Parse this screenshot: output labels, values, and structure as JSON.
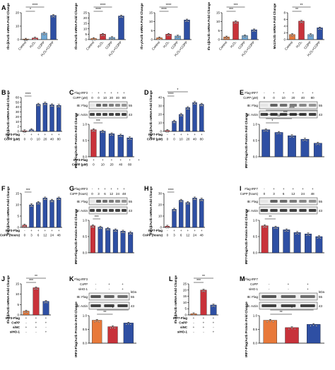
{
  "chart_data": [
    {
      "panel": "A",
      "type": "bar",
      "ylabel": "Ifn-β/Actb mRNA Fold Change",
      "categories": [
        "Control",
        "H₂O₂",
        "COPP",
        "H₂O₂+COPP"
      ],
      "values": [
        1,
        3,
        12,
        45
      ],
      "ylim": [
        0,
        50
      ],
      "yticks": [
        "0",
        "10",
        "20"
      ],
      "colors": [
        "#e8793a",
        "#c8323a",
        "#6fa7d4",
        "#2e4fa3"
      ],
      "sig": [
        "*",
        "****"
      ]
    },
    {
      "panel": "A2",
      "type": "bar",
      "ylabel": "Ifn-α/Actb mRNA Fold Change",
      "categories": [
        "Control",
        "H₂O₂",
        "COPP",
        "H₂O₂+COPP"
      ],
      "values": [
        1,
        5,
        2,
        22
      ],
      "ylim": [
        0,
        25
      ],
      "yticks": [
        "0",
        "5",
        "10",
        "15",
        "20",
        "25"
      ],
      "colors": [
        "#e8793a",
        "#c8323a",
        "#6fa7d4",
        "#2e4fa3"
      ],
      "sig": [
        "****",
        "****"
      ]
    },
    {
      "panel": "A3",
      "type": "bar",
      "ylabel": "Ifn-γ/Actb mRNA Fold Change",
      "categories": [
        "Control",
        "H₂O₂",
        "COPP",
        "H₂O₂+COPP"
      ],
      "values": [
        1,
        3,
        2,
        11
      ],
      "ylim": [
        0,
        15
      ],
      "yticks": [
        "0",
        "5",
        "10",
        "15"
      ],
      "colors": [
        "#e8793a",
        "#c8323a",
        "#6fa7d4",
        "#2e4fa3"
      ],
      "sig": [
        "****",
        "****"
      ]
    },
    {
      "panel": "A4",
      "type": "bar",
      "ylabel": "Ifn-1β/Actb mRNA Fold Change",
      "categories": [
        "Control",
        "H₂O₂",
        "COPP",
        "H₂O₂+COPP"
      ],
      "values": [
        1.5,
        10,
        2.2,
        5.5
      ],
      "ylim": [
        0,
        15
      ],
      "yticks": [
        "0",
        "5",
        "10",
        "15"
      ],
      "colors": [
        "#e8793a",
        "#c8323a",
        "#6fa7d4",
        "#2e4fa3"
      ],
      "sig": [
        "***",
        "***"
      ]
    },
    {
      "panel": "A5",
      "type": "bar",
      "ylabel": "Mx1/Actb mRNA Fold Change",
      "categories": [
        "Control",
        "H₂O₂",
        "COPP",
        "H₂O₂+COPP"
      ],
      "values": [
        1.5,
        5.5,
        1.5,
        3.5
      ],
      "ylim": [
        0,
        8
      ],
      "yticks": [
        "0",
        "2",
        "4",
        "6",
        "8"
      ],
      "colors": [
        "#e8793a",
        "#c8323a",
        "#6fa7d4",
        "#2e4fa3"
      ],
      "sig": [
        "**",
        "**"
      ]
    },
    {
      "panel": "B",
      "type": "bar",
      "ylabel": "Ifn-1β/Actb mRNA Fold Change",
      "rows": [
        {
          "label": "IRF3-Flag",
          "cells": [
            "-",
            "+",
            "+",
            "+",
            "+",
            "+"
          ]
        },
        {
          "label": "CoPP (μM)",
          "cells": [
            "0",
            "0",
            "10",
            "20",
            "40",
            "80"
          ]
        }
      ],
      "values": [
        1,
        3,
        48,
        50,
        47,
        46
      ],
      "ylim": [
        0,
        60
      ],
      "yticks": [
        "0",
        "2",
        "10",
        "20",
        "30",
        "40",
        "50",
        "60"
      ],
      "colors": [
        "#c8323a",
        "#2e4fa3",
        "#2e4fa3",
        "#2e4fa3",
        "#2e4fa3",
        "#2e4fa3"
      ],
      "sig": [
        "****"
      ]
    },
    {
      "panel": "C",
      "type": "bar",
      "ylabel": "IRF3-Flag/Actb Protein Fold Change",
      "blot_header": [
        {
          "label": "Flag-IRF3",
          "cells": [
            "-",
            "+",
            "+",
            "+",
            "+",
            "+"
          ]
        },
        {
          "label": "CoPP (μM)",
          "cells": [
            "0",
            "0",
            "10",
            "20",
            "40",
            "80"
          ]
        }
      ],
      "blots": [
        {
          "label": "IB: Flag",
          "kda": "55"
        },
        {
          "label": "IB: Actin",
          "kda": "43"
        }
      ],
      "rows": [
        {
          "label": "IRF3-Flag",
          "cells": [
            "+",
            "+",
            "+",
            "+",
            "+",
            "+"
          ]
        },
        {
          "label": "CoPP (μM)",
          "cells": [
            "0",
            "10",
            "20",
            "40",
            "80",
            ""
          ]
        }
      ],
      "values": [
        1.0,
        0.95,
        0.85,
        0.8,
        0.7
      ],
      "ylim": [
        0,
        1.2
      ],
      "yticks": [
        "0.0",
        "0.5",
        "1.0"
      ],
      "colors": [
        "#c8323a",
        "#2e4fa3",
        "#2e4fa3",
        "#2e4fa3",
        "#2e4fa3"
      ],
      "sig": [
        "***"
      ]
    },
    {
      "panel": "D",
      "type": "bar",
      "ylabel": "Ifn-1β/Actb mRNA Fold Change",
      "rows": [
        {
          "label": "IRF7-Flag",
          "cells": [
            "-",
            "+",
            "+",
            "+",
            "+",
            "+"
          ]
        },
        {
          "label": "CoPP (μM)",
          "cells": [
            "0",
            "0",
            "10",
            "20",
            "40",
            "80"
          ]
        }
      ],
      "values": [
        1,
        12,
        20,
        28,
        34,
        32
      ],
      "ylim": [
        0,
        40
      ],
      "yticks": [
        "0",
        "10",
        "20",
        "30",
        "40"
      ],
      "colors": [
        "#c8323a",
        "#2e4fa3",
        "#2e4fa3",
        "#2e4fa3",
        "#2e4fa3",
        "#2e4fa3"
      ],
      "sig": [
        "****",
        "*"
      ]
    },
    {
      "panel": "E",
      "type": "bar",
      "ylabel": "IRF7-Flag/Actb Protein Fold Change",
      "blot_header": [
        {
          "label": "Flag-IRF7",
          "cells": [
            "-",
            "+",
            "+",
            "+",
            "+",
            "+"
          ]
        },
        {
          "label": "CoPP (μM)",
          "cells": [
            "0",
            "0",
            "10",
            "20",
            "40",
            "80"
          ]
        }
      ],
      "blots": [
        {
          "label": "IB: Flag",
          "kda": "55"
        },
        {
          "label": "IB: Actin",
          "kda": "43"
        }
      ],
      "values": [
        1.0,
        0.9,
        0.78,
        0.65,
        0.5
      ],
      "ylim": [
        0,
        1.2
      ],
      "yticks": [
        "0.0",
        "0.5",
        "1.0"
      ],
      "colors": [
        "#2e4fa3",
        "#2e4fa3",
        "#2e4fa3",
        "#2e4fa3",
        "#2e4fa3"
      ],
      "sig": [
        "*",
        "**",
        "***",
        "****"
      ]
    },
    {
      "panel": "F",
      "type": "bar",
      "ylabel": "Ifn-1β/Actb mRNA Fold Change",
      "rows": [
        {
          "label": "IRF3-Flag",
          "cells": [
            "-",
            "+",
            "+",
            "+",
            "+",
            "+"
          ]
        },
        {
          "label": "CoPP (hours)",
          "cells": [
            "0",
            "3",
            "6",
            "12",
            "24",
            "48"
          ]
        }
      ],
      "values": [
        1,
        10,
        11,
        13,
        12,
        13
      ],
      "ylim": [
        0,
        15
      ],
      "yticks": [
        "0",
        "5",
        "10",
        "15"
      ],
      "colors": [
        "#c8323a",
        "#2e4fa3",
        "#2e4fa3",
        "#2e4fa3",
        "#2e4fa3",
        "#2e4fa3"
      ],
      "sig": [
        "***"
      ]
    },
    {
      "panel": "G",
      "type": "bar",
      "ylabel": "IRF3-Flag/Actb Protein Fold Change",
      "blot_header": [
        {
          "label": "Flag-IRF3",
          "cells": [
            "-",
            "+",
            "+",
            "+",
            "+",
            "+"
          ]
        },
        {
          "label": "CoPP (hours)",
          "cells": [
            "0",
            "3",
            "6",
            "12",
            "24",
            "48"
          ]
        }
      ],
      "blots": [
        {
          "label": "IB: Flag",
          "kda": "55"
        },
        {
          "label": "IB: Actin",
          "kda": "43"
        }
      ],
      "values": [
        1.0,
        0.95,
        0.9,
        0.85,
        0.8,
        0.75
      ],
      "ylim": [
        0,
        1.2
      ],
      "yticks": [
        "0.0",
        "0.5",
        "1.0"
      ],
      "colors": [
        "#c8323a",
        "#2e4fa3",
        "#2e4fa3",
        "#2e4fa3",
        "#2e4fa3",
        "#2e4fa3"
      ],
      "sig": [
        "***"
      ]
    },
    {
      "panel": "H",
      "type": "bar",
      "ylabel": "Ifn-1β/Actb mRNA Fold Change",
      "rows": [
        {
          "label": "IRF7-Flag",
          "cells": [
            "-",
            "+",
            "+",
            "+",
            "+",
            "+"
          ]
        },
        {
          "label": "CoPP (hours)",
          "cells": [
            "0",
            "3",
            "6",
            "12",
            "24",
            "48"
          ]
        }
      ],
      "values": [
        1,
        16,
        24,
        22,
        26,
        25
      ],
      "ylim": [
        0,
        30
      ],
      "yticks": [
        "0",
        "10",
        "20",
        "30"
      ],
      "colors": [
        "#c8323a",
        "#2e4fa3",
        "#2e4fa3",
        "#2e4fa3",
        "#2e4fa3",
        "#2e4fa3"
      ],
      "sig": [
        "****"
      ]
    },
    {
      "panel": "I",
      "type": "bar",
      "ylabel": "IRF7-Flag/Actb Protein Fold Change",
      "blot_header": [
        {
          "label": "Flag-IRF7",
          "cells": [
            "-",
            "+",
            "+",
            "+",
            "+",
            "+"
          ]
        },
        {
          "label": "CoPP (hours)",
          "cells": [
            "0",
            "3",
            "6",
            "12",
            "24",
            "48"
          ]
        }
      ],
      "blots": [
        {
          "label": "IB: Flag",
          "kda": "55"
        },
        {
          "label": "IB: Actin",
          "kda": "43"
        }
      ],
      "values": [
        1.0,
        0.95,
        0.85,
        0.75,
        0.7,
        0.6
      ],
      "ylim": [
        0,
        1.2
      ],
      "yticks": [
        "0.0",
        "0.5",
        "1.0"
      ],
      "colors": [
        "#c8323a",
        "#2e4fa3",
        "#2e4fa3",
        "#2e4fa3",
        "#2e4fa3",
        "#2e4fa3"
      ],
      "sig": [
        "**"
      ]
    },
    {
      "panel": "J",
      "type": "bar",
      "ylabel": "Ifn-1β/Actb mRNA Fold Change",
      "rows": [
        {
          "label": "IRF3-Flag",
          "cells": [
            "+",
            "+",
            "+"
          ]
        },
        {
          "label": "CoPP",
          "cells": [
            "-",
            "+",
            "+"
          ]
        },
        {
          "label": "siNC",
          "cells": [
            "+",
            "+",
            "-"
          ]
        },
        {
          "label": "siHO-1",
          "cells": [
            "-",
            "-",
            "+"
          ]
        }
      ],
      "values": [
        2,
        14,
        7
      ],
      "ylim": [
        0,
        16
      ],
      "yticks": [
        "0",
        "5",
        "10",
        "15"
      ],
      "colors": [
        "#e8793a",
        "#c8323a",
        "#2e4fa3"
      ],
      "sig": [
        "***",
        "**"
      ]
    },
    {
      "panel": "K",
      "type": "bar",
      "ylabel": "IRF3-Flag/Actb Protein Fold Change",
      "blot_header": [
        {
          "label": "Flag-IRF3",
          "cells": [
            "",
            "",
            ""
          ]
        },
        {
          "label": "CoPP",
          "cells": [
            "-",
            "+",
            "+"
          ]
        },
        {
          "label": "siHO-1",
          "cells": [
            "-",
            "-",
            "+"
          ]
        }
      ],
      "blots": [
        {
          "label": "IB: Flag",
          "kda": "55"
        },
        {
          "label": "IB: Actin",
          "kda": "43"
        }
      ],
      "kda_unit": "kDa",
      "values": [
        1.0,
        0.72,
        0.88
      ],
      "ylim": [
        0,
        1.2
      ],
      "yticks": [
        "0.0",
        "0.5",
        "1.0"
      ],
      "colors": [
        "#e8793a",
        "#c8323a",
        "#2e4fa3"
      ],
      "sig": [
        "**",
        "*"
      ]
    },
    {
      "panel": "L",
      "type": "bar",
      "ylabel": "Ifn-1β/Actb mRNA Fold Change",
      "rows": [
        {
          "label": "IRF7-Flag",
          "cells": [
            "+",
            "+",
            "+"
          ]
        },
        {
          "label": "CoPP",
          "cells": [
            "-",
            "+",
            "+"
          ]
        },
        {
          "label": "siNC",
          "cells": [
            "+",
            "+",
            "-"
          ]
        },
        {
          "label": "siHO-1",
          "cells": [
            "-",
            "-",
            "+"
          ]
        }
      ],
      "values": [
        1,
        20,
        8
      ],
      "ylim": [
        0,
        25
      ],
      "yticks": [
        "0",
        "5",
        "10",
        "15",
        "20",
        "25"
      ],
      "colors": [
        "#e8793a",
        "#c8323a",
        "#2e4fa3"
      ],
      "sig": [
        "***",
        "**"
      ]
    },
    {
      "panel": "M",
      "type": "bar",
      "ylabel": "IRF7-Flag/Actb Protein Fold Change",
      "blot_header": [
        {
          "label": "Flag-IRF7",
          "cells": [
            "",
            "",
            ""
          ]
        },
        {
          "label": "CoPP",
          "cells": [
            "-",
            "+",
            "+"
          ]
        },
        {
          "label": "siHO-1",
          "cells": [
            "-",
            "-",
            "+"
          ]
        }
      ],
      "blots": [
        {
          "label": "IB: Flag",
          "kda": "55"
        },
        {
          "label": "IB: Actin",
          "kda": "43"
        }
      ],
      "kda_unit": "kDa",
      "values": [
        1.0,
        0.68,
        0.82
      ],
      "ylim": [
        0,
        1.2
      ],
      "yticks": [
        "0.0",
        "0.5",
        "1.0"
      ],
      "colors": [
        "#e8793a",
        "#c8323a",
        "#2e4fa3"
      ],
      "sig": [
        "**",
        "*"
      ]
    }
  ],
  "panel_letters": [
    "A",
    "B",
    "C",
    "D",
    "E",
    "F",
    "G",
    "H",
    "I",
    "J",
    "K",
    "L",
    "M"
  ]
}
